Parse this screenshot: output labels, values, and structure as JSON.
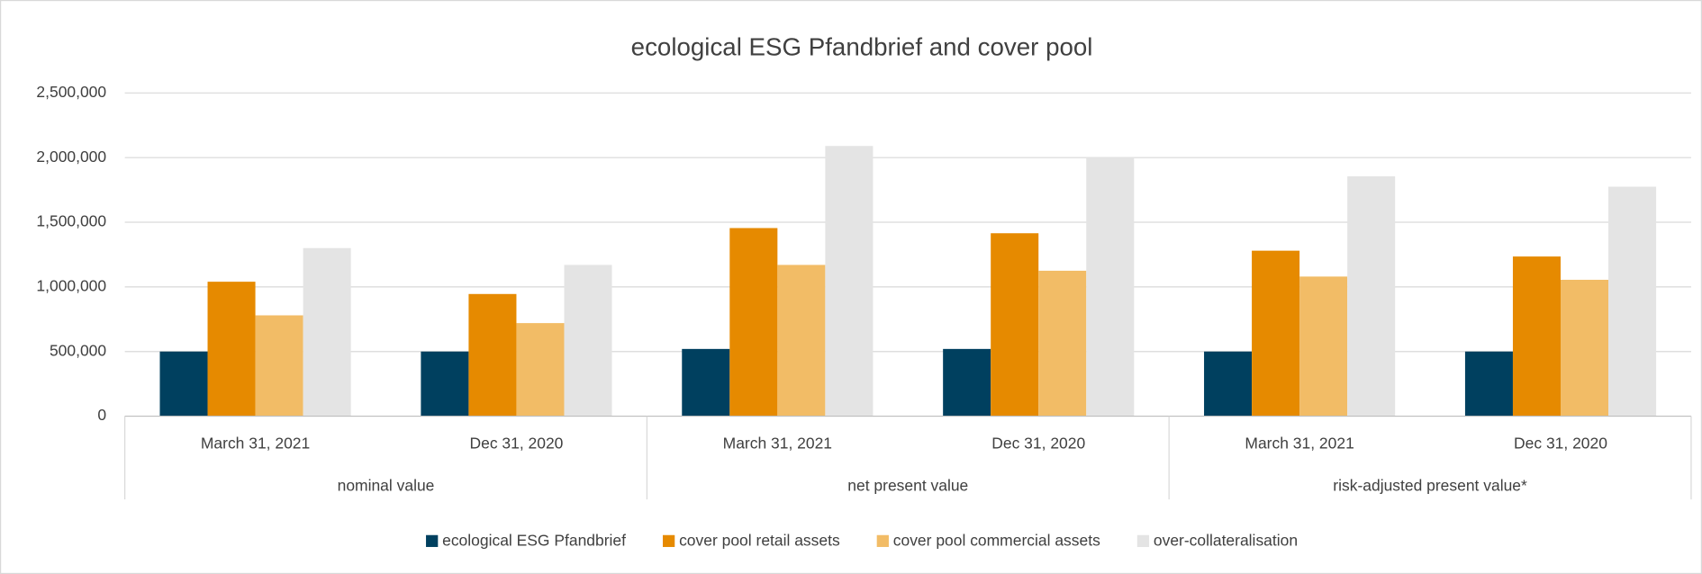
{
  "chart_data": {
    "type": "bar",
    "title": "ecological ESG Pfandbrief and cover pool",
    "categories": [
      "March 31, 2021",
      "Dec 31, 2020",
      "March 31, 2021",
      "Dec 31, 2020",
      "March 31, 2021",
      "Dec 31, 2020"
    ],
    "category_groups": [
      "nominal value",
      "net present value",
      "risk-adjusted present value*"
    ],
    "series": [
      {
        "name": "ecological ESG Pfandbrief",
        "color": "#00405f",
        "values": [
          500000,
          500000,
          520000,
          520000,
          500000,
          500000
        ]
      },
      {
        "name": "cover pool retail assets",
        "color": "#e68a00",
        "values": [
          1040000,
          945000,
          1455000,
          1415000,
          1280000,
          1235000
        ]
      },
      {
        "name": "cover pool commercial assets",
        "color": "#f2bc66",
        "values": [
          780000,
          720000,
          1170000,
          1125000,
          1080000,
          1055000
        ]
      },
      {
        "name": "over-collateralisation",
        "color": "#e4e4e4",
        "values": [
          1300000,
          1170000,
          2090000,
          2000000,
          1855000,
          1775000
        ]
      }
    ],
    "ylim": [
      0,
      2500000
    ],
    "yticks": [
      0,
      {
        "value": 500000,
        "label": "500,000"
      },
      {
        "value": 1000000,
        "label": "1,000,000"
      },
      {
        "value": 1500000,
        "label": "1,500,000"
      },
      {
        "value": 2000000,
        "label": "2,000,000"
      },
      {
        "value": 2500000,
        "label": "2,500,000"
      }
    ],
    "grid": true,
    "legend": "bottom"
  }
}
